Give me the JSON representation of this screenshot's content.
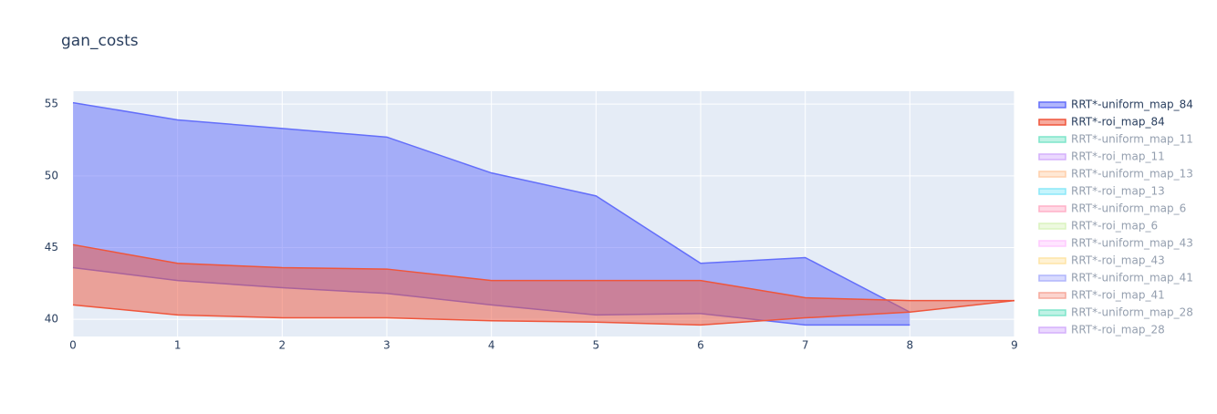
{
  "chart_data": {
    "type": "band",
    "title": "gan_costs",
    "xlim": [
      0,
      9
    ],
    "xticks": [
      0,
      1,
      2,
      3,
      4,
      5,
      6,
      7,
      8,
      9
    ],
    "ylim": [
      38.8,
      55.9
    ],
    "yticks": [
      40,
      45,
      50,
      55
    ],
    "grid": true,
    "legend": "right",
    "series": [
      {
        "name": "RRT*-uniform_map_84",
        "color": "#636efa",
        "visible": true,
        "x": [
          0,
          1,
          2,
          3,
          4,
          5,
          6,
          7,
          8
        ],
        "upper": [
          55.1,
          53.9,
          53.3,
          52.7,
          50.2,
          48.6,
          43.9,
          44.3,
          40.5
        ],
        "lower": [
          43.6,
          42.7,
          42.2,
          41.8,
          41.0,
          40.3,
          40.4,
          39.6,
          39.6
        ]
      },
      {
        "name": "RRT*-roi_map_84",
        "color": "#EF553B",
        "visible": true,
        "x": [
          0,
          1,
          2,
          3,
          4,
          5,
          6,
          7,
          8,
          9
        ],
        "upper": [
          45.2,
          43.9,
          43.6,
          43.5,
          42.7,
          42.7,
          42.7,
          41.5,
          41.3,
          41.3
        ],
        "lower": [
          41.0,
          40.3,
          40.1,
          40.1,
          39.9,
          39.8,
          39.6,
          40.1,
          40.5,
          41.3
        ]
      },
      {
        "name": "RRT*-uniform_map_11",
        "color": "#00cc96",
        "visible": false
      },
      {
        "name": "RRT*-roi_map_11",
        "color": "#ab63fa",
        "visible": false
      },
      {
        "name": "RRT*-uniform_map_13",
        "color": "#FFA15A",
        "visible": false
      },
      {
        "name": "RRT*-roi_map_13",
        "color": "#19d3f3",
        "visible": false
      },
      {
        "name": "RRT*-uniform_map_6",
        "color": "#FF6692",
        "visible": false
      },
      {
        "name": "RRT*-roi_map_6",
        "color": "#B6E880",
        "visible": false
      },
      {
        "name": "RRT*-uniform_map_43",
        "color": "#FF97FF",
        "visible": false
      },
      {
        "name": "RRT*-roi_map_43",
        "color": "#FECB52",
        "visible": false
      },
      {
        "name": "RRT*-uniform_map_41",
        "color": "#636efa",
        "visible": false
      },
      {
        "name": "RRT*-roi_map_41",
        "color": "#EF553B",
        "visible": false
      },
      {
        "name": "RRT*-uniform_map_28",
        "color": "#00cc96",
        "visible": false
      },
      {
        "name": "RRT*-roi_map_28",
        "color": "#ab63fa",
        "visible": false
      }
    ]
  }
}
